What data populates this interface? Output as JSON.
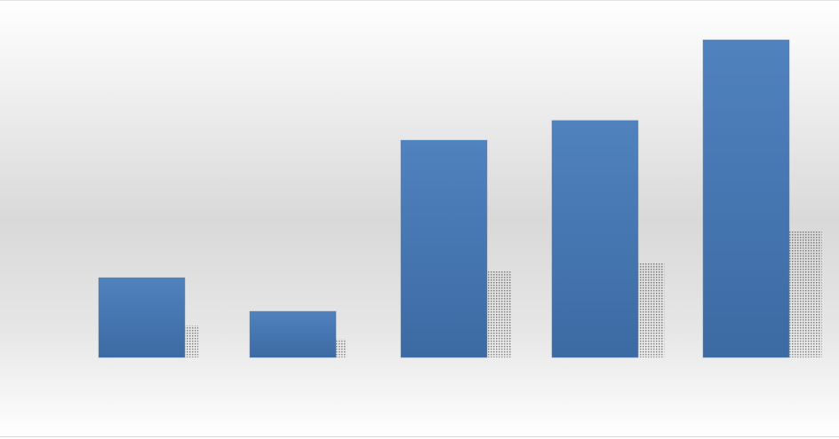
{
  "chart_data": {
    "type": "bar",
    "categories": [
      null,
      null,
      null,
      null,
      null
    ],
    "values": [
      25.1,
      14.5,
      68.4,
      74.6,
      100
    ],
    "color": "#4a7ebb",
    "ylim": [
      0,
      100
    ]
  }
}
